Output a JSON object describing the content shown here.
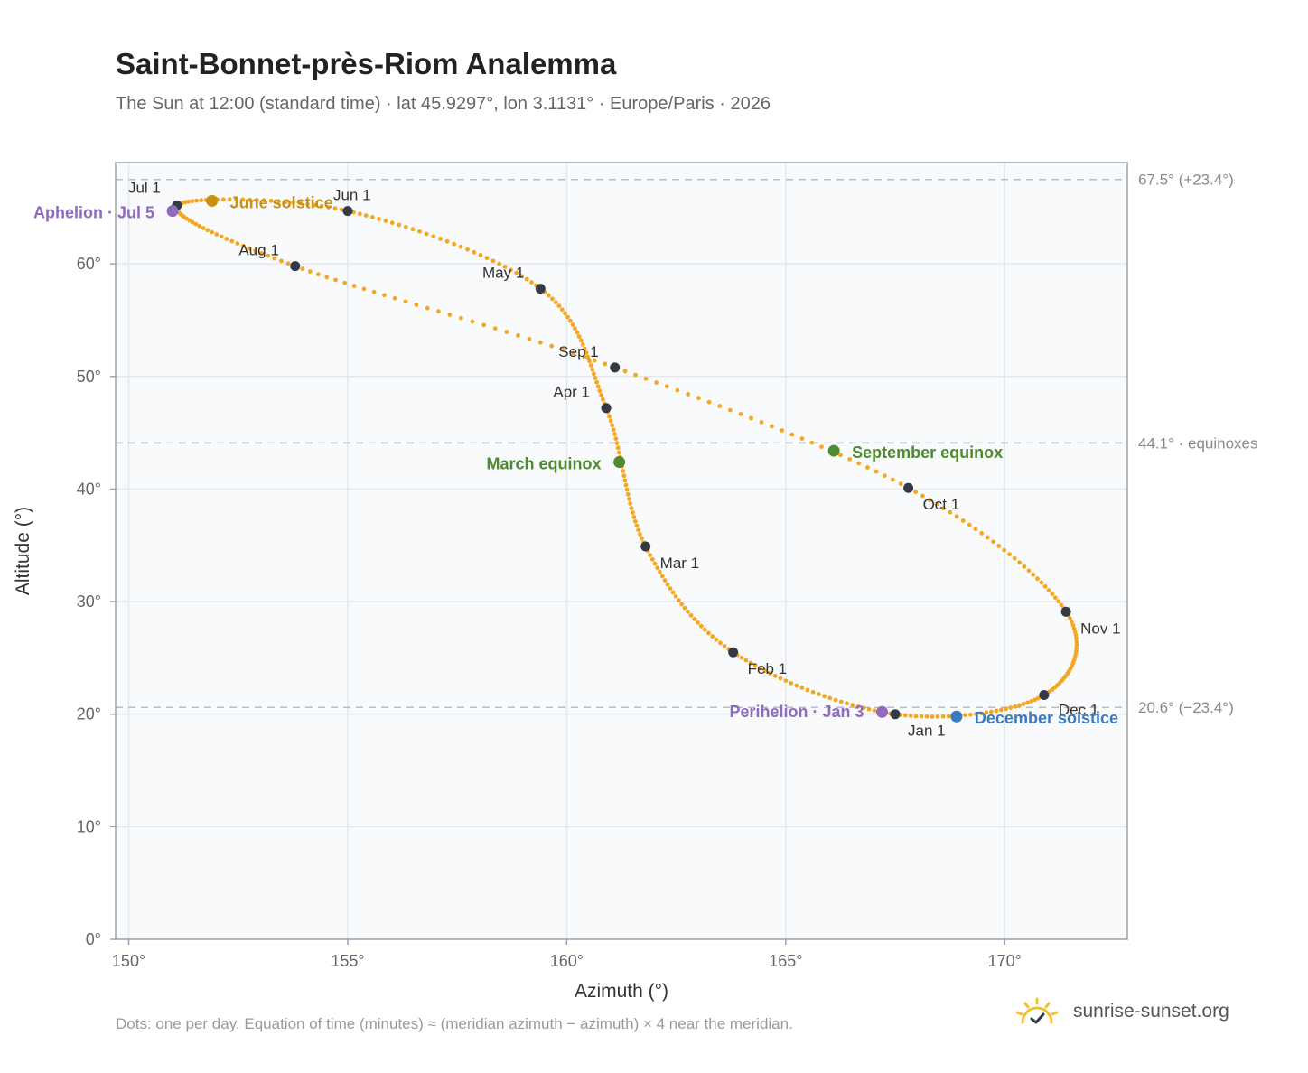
{
  "header": {
    "title": "Saint-Bonnet-près-Riom Analemma",
    "subtitle": "The Sun at 12:00 (standard time) · lat 45.9297°, lon 3.1131° · Europe/Paris · 2026"
  },
  "footer": {
    "note": "Dots: one per day. Equation of time (minutes) ≈ (meridian azimuth − azimuth) × 4 near the meridian.",
    "brand": "sunrise-sunset.org"
  },
  "colors": {
    "path": "#f5a623",
    "marker": "#333a45",
    "june": "#c8900f",
    "equinox": "#4e8a2e",
    "december": "#3b7bbf",
    "apsis": "#8e6bbf",
    "grid": "#e4e8ee",
    "reference": "#b8c0cc",
    "plot_bg": "#f8fafc",
    "frame": "#9aa4b0"
  },
  "chart_data": {
    "type": "scatter",
    "xlabel": "Azimuth (°)",
    "ylabel": "Altitude (°)",
    "xlim": [
      149.7,
      172.8
    ],
    "ylim": [
      0,
      69
    ],
    "x_ticks": [
      150,
      155,
      160,
      165,
      170
    ],
    "x_tick_labels": [
      "150°",
      "155°",
      "160°",
      "165°",
      "170°"
    ],
    "y_ticks": [
      0,
      10,
      20,
      30,
      40,
      50,
      60
    ],
    "y_tick_labels": [
      "0°",
      "10°",
      "20°",
      "30°",
      "40°",
      "50°",
      "60°"
    ],
    "grid": true,
    "reference_lines": [
      {
        "y": 67.5,
        "label": "67.5° (+23.4°)"
      },
      {
        "y": 44.1,
        "label": "44.1° · equinoxes"
      },
      {
        "y": 20.6,
        "label": "20.6° (−23.4°)"
      }
    ],
    "month_markers": [
      {
        "label": "Jan 1",
        "az": 167.5,
        "alt": 20.0
      },
      {
        "label": "Feb 1",
        "az": 163.8,
        "alt": 25.5
      },
      {
        "label": "Mar 1",
        "az": 161.8,
        "alt": 34.9
      },
      {
        "label": "Apr 1",
        "az": 160.9,
        "alt": 47.2
      },
      {
        "label": "May 1",
        "az": 159.4,
        "alt": 57.8
      },
      {
        "label": "Jun 1",
        "az": 155.0,
        "alt": 64.7
      },
      {
        "label": "Jul 1",
        "az": 151.1,
        "alt": 65.2
      },
      {
        "label": "Aug 1",
        "az": 153.8,
        "alt": 59.8
      },
      {
        "label": "Sep 1",
        "az": 161.1,
        "alt": 50.8
      },
      {
        "label": "Oct 1",
        "az": 167.8,
        "alt": 40.1
      },
      {
        "label": "Nov 1",
        "az": 171.4,
        "alt": 29.1
      },
      {
        "label": "Dec 1",
        "az": 170.9,
        "alt": 21.7
      }
    ],
    "events": [
      {
        "label": "June solstice",
        "az": 151.9,
        "alt": 65.6,
        "color_key": "june"
      },
      {
        "label": "March equinox",
        "az": 161.2,
        "alt": 42.4,
        "color_key": "equinox"
      },
      {
        "label": "September equinox",
        "az": 166.1,
        "alt": 43.4,
        "color_key": "equinox"
      },
      {
        "label": "December solstice",
        "az": 168.9,
        "alt": 19.8,
        "color_key": "december"
      },
      {
        "label": "Aphelion · Jul 5",
        "az": 151.0,
        "alt": 64.7,
        "color_key": "apsis"
      },
      {
        "label": "Perihelion · Jan 3",
        "az": 167.2,
        "alt": 20.2,
        "color_key": "apsis"
      }
    ]
  }
}
